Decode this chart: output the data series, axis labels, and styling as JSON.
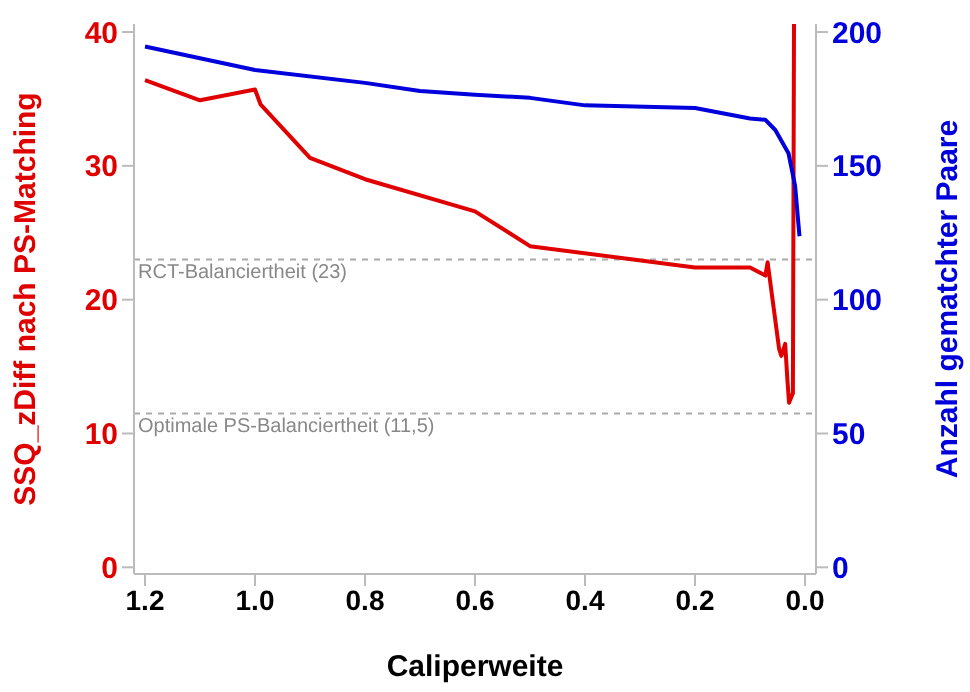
{
  "chart_data": {
    "type": "line",
    "xlabel": "Caliperweite",
    "ylabel": "SSQ_zDiff nach PS-Matching",
    "y2label": "Anzahl gematchter Paare",
    "xlim": [
      1.22,
      -0.02
    ],
    "xticks": [
      {
        "value": 1.2,
        "label": "1.2"
      },
      {
        "value": 1.0,
        "label": "1.0"
      },
      {
        "value": 0.8,
        "label": "0.8"
      },
      {
        "value": 0.6,
        "label": "0.6"
      },
      {
        "value": 0.4,
        "label": "0.4"
      },
      {
        "value": 0.2,
        "label": "0.2"
      },
      {
        "value": 0.0,
        "label": "0.0"
      }
    ],
    "ylim": [
      -0.5,
      40.6
    ],
    "yticks": [
      0,
      10,
      20,
      30,
      40
    ],
    "y2lim": [
      -2.5,
      203
    ],
    "y2ticks": [
      0,
      50,
      100,
      150,
      200
    ],
    "grid": false,
    "legend": false,
    "marker": "none",
    "line_style": "solid",
    "series": [
      {
        "color": "#e00000",
        "x": [
          1.2,
          1.1,
          1.0,
          0.99,
          0.9,
          0.8,
          0.6,
          0.5,
          0.2,
          0.1,
          0.072,
          0.068,
          0.047,
          0.043,
          0.036,
          0.032,
          0.029,
          0.022,
          0.02
        ],
        "values": [
          36.4,
          34.9,
          35.7,
          34.6,
          30.6,
          29.0,
          26.6,
          24.0,
          22.4,
          22.4,
          21.8,
          22.8,
          16.3,
          15.8,
          16.7,
          14.0,
          12.3,
          13.0,
          40.6
        ]
      },
      {
        "color": "#0000dd",
        "axis": "y2",
        "x": [
          1.2,
          1.0,
          0.8,
          0.7,
          0.6,
          0.5,
          0.4,
          0.2,
          0.1,
          0.072,
          0.054,
          0.03,
          0.018,
          0.01
        ],
        "values": [
          194.6,
          185.8,
          181,
          178,
          176.6,
          175.4,
          172.6,
          171.6,
          167.7,
          167.2,
          163.4,
          154.7,
          142.5,
          123.7
        ]
      }
    ],
    "ref_lines": [
      {
        "axis": "y",
        "value": 23,
        "label": "RCT-Balanciertheit (23)",
        "color": "#aaaaaa",
        "line_style": "dashed"
      },
      {
        "axis": "y",
        "value": 11.5,
        "label": "Optimale PS-Balanciertheit (11,5)",
        "color": "#aaaaaa",
        "line_style": "dashed"
      }
    ]
  }
}
